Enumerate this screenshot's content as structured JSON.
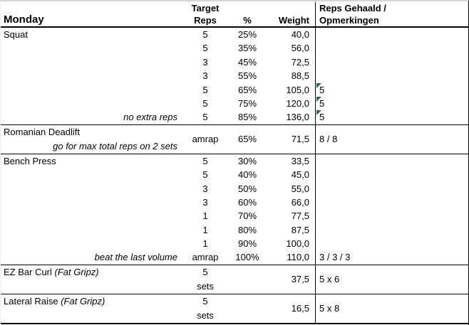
{
  "sheet": {
    "header": {
      "day": "Monday",
      "col_reps_line1": "Target",
      "col_reps_line2": "Reps",
      "col_pct": "%",
      "col_weight": "Weight",
      "col_result_line1": "Reps Gehaald /",
      "col_result_line2": "Opmerkingen"
    },
    "colors": {
      "flag_green": "#1e7145",
      "grid_line": "#000000",
      "top_edge_gray": "#d5d5d5"
    },
    "sections": [
      {
        "type": "rows",
        "title": "Squat",
        "title_italic": "",
        "rows": [
          {
            "note": "",
            "reps": "5",
            "pct": "25%",
            "weight": "40,0",
            "result": "",
            "flag": false
          },
          {
            "note": "",
            "reps": "5",
            "pct": "35%",
            "weight": "56,0",
            "result": "",
            "flag": false
          },
          {
            "note": "",
            "reps": "3",
            "pct": "45%",
            "weight": "72,5",
            "result": "",
            "flag": false
          },
          {
            "note": "",
            "reps": "3",
            "pct": "55%",
            "weight": "88,5",
            "result": "",
            "flag": false
          },
          {
            "note": "",
            "reps": "5",
            "pct": "65%",
            "weight": "105,0",
            "result": "5",
            "flag": true
          },
          {
            "note": "",
            "reps": "5",
            "pct": "75%",
            "weight": "120,0",
            "result": "5",
            "flag": true
          },
          {
            "note": "no extra reps",
            "reps": "5",
            "pct": "85%",
            "weight": "136,0",
            "result": "5",
            "flag": true
          }
        ]
      },
      {
        "type": "merged",
        "title": "Romanian Deadlift",
        "title_italic": "",
        "note": "go for max total reps on 2 sets",
        "reps": "amrap",
        "reps_lines": null,
        "pct": "65%",
        "weight": "71,5",
        "result": "8 / 8"
      },
      {
        "type": "rows",
        "title": "Bench Press",
        "title_italic": "",
        "rows": [
          {
            "note": "",
            "reps": "5",
            "pct": "30%",
            "weight": "33,5",
            "result": "",
            "flag": false
          },
          {
            "note": "",
            "reps": "5",
            "pct": "40%",
            "weight": "45,0",
            "result": "",
            "flag": false
          },
          {
            "note": "",
            "reps": "3",
            "pct": "50%",
            "weight": "55,0",
            "result": "",
            "flag": false
          },
          {
            "note": "",
            "reps": "3",
            "pct": "60%",
            "weight": "66,0",
            "result": "",
            "flag": false
          },
          {
            "note": "",
            "reps": "1",
            "pct": "70%",
            "weight": "77,5",
            "result": "",
            "flag": false
          },
          {
            "note": "",
            "reps": "1",
            "pct": "80%",
            "weight": "87,5",
            "result": "",
            "flag": false
          },
          {
            "note": "",
            "reps": "1",
            "pct": "90%",
            "weight": "100,0",
            "result": "",
            "flag": false
          },
          {
            "note": "beat the last volume",
            "reps": "amrap",
            "pct": "100%",
            "weight": "110,0",
            "result": "3 / 3 / 3",
            "flag": false
          }
        ]
      },
      {
        "type": "merged",
        "title": "EZ Bar Curl",
        "title_italic": "(Fat Gripz)",
        "note": "",
        "reps": "",
        "reps_lines": [
          "5",
          "sets"
        ],
        "pct": "",
        "weight": "37,5",
        "result": "5 x 6"
      },
      {
        "type": "merged",
        "title": "Lateral Raise",
        "title_italic": "(Fat Gripz)",
        "note": "",
        "reps": "",
        "reps_lines": [
          "5",
          "sets"
        ],
        "pct": "",
        "weight": "16,5",
        "result": "5 x 8"
      }
    ]
  }
}
